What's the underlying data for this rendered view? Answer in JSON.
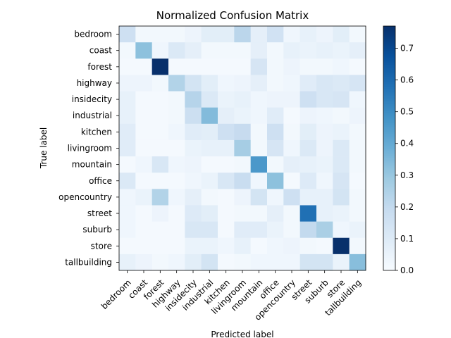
{
  "chart_data": {
    "type": "heatmap",
    "title": "Normalized Confusion Matrix",
    "xlabel": "Predicted label",
    "ylabel": "True label",
    "row_labels": [
      "bedroom",
      "coast",
      "forest",
      "highway",
      "insidecity",
      "industrial",
      "kitchen",
      "livingroom",
      "mountain",
      "office",
      "opencountry",
      "street",
      "suburb",
      "store",
      "tallbuilding"
    ],
    "col_labels": [
      "bedroom",
      "coast",
      "forest",
      "highway",
      "insidecity",
      "industrial",
      "kitchen",
      "livingroom",
      "mountain",
      "office",
      "opencountry",
      "street",
      "suburb",
      "store",
      "tallbuilding"
    ],
    "colormap": "Blues",
    "colorbar": {
      "min": 0.0,
      "max": 0.77,
      "ticks": [
        0.0,
        0.1,
        0.2,
        0.3,
        0.4,
        0.5,
        0.6,
        0.7
      ],
      "tick_labels": [
        "0.0",
        "0.1",
        "0.2",
        "0.3",
        "0.4",
        "0.5",
        "0.6",
        "0.7"
      ]
    },
    "values": [
      [
        0.16,
        0.02,
        0.02,
        0.02,
        0.04,
        0.08,
        0.08,
        0.22,
        0.07,
        0.15,
        0.03,
        0.06,
        0.04,
        0.08,
        0.02
      ],
      [
        0.02,
        0.32,
        0.03,
        0.11,
        0.07,
        0.02,
        0.02,
        0.02,
        0.07,
        0.02,
        0.06,
        0.05,
        0.06,
        0.05,
        0.07
      ],
      [
        0.01,
        0.01,
        0.77,
        0.01,
        0.01,
        0.01,
        0.01,
        0.01,
        0.13,
        0.02,
        0.04,
        0.02,
        0.02,
        0.03,
        0.01
      ],
      [
        0.04,
        0.04,
        0.02,
        0.24,
        0.14,
        0.08,
        0.03,
        0.04,
        0.07,
        0.02,
        0.03,
        0.09,
        0.12,
        0.11,
        0.13
      ],
      [
        0.06,
        0.01,
        0.01,
        0.02,
        0.23,
        0.11,
        0.05,
        0.06,
        0.03,
        0.04,
        0.04,
        0.16,
        0.12,
        0.13,
        0.03
      ],
      [
        0.06,
        0.01,
        0.01,
        0.02,
        0.17,
        0.34,
        0.07,
        0.05,
        0.03,
        0.09,
        0.01,
        0.04,
        0.03,
        0.02,
        0.04
      ],
      [
        0.09,
        0.01,
        0.01,
        0.03,
        0.09,
        0.08,
        0.16,
        0.19,
        0.02,
        0.16,
        0.02,
        0.08,
        0.04,
        0.05,
        0.02
      ],
      [
        0.09,
        0.01,
        0.01,
        0.01,
        0.05,
        0.06,
        0.06,
        0.27,
        0.02,
        0.13,
        0.03,
        0.11,
        0.04,
        0.11,
        0.02
      ],
      [
        0.01,
        0.03,
        0.12,
        0.03,
        0.04,
        0.01,
        0.01,
        0.02,
        0.46,
        0.02,
        0.07,
        0.06,
        0.05,
        0.11,
        0.02
      ],
      [
        0.11,
        0.01,
        0.01,
        0.01,
        0.03,
        0.05,
        0.12,
        0.18,
        0.03,
        0.32,
        0.01,
        0.1,
        0.03,
        0.13,
        0.01
      ],
      [
        0.03,
        0.05,
        0.24,
        0.03,
        0.07,
        0.02,
        0.01,
        0.04,
        0.14,
        0.03,
        0.16,
        0.06,
        0.06,
        0.14,
        0.02
      ],
      [
        0.03,
        0.01,
        0.04,
        0.01,
        0.1,
        0.08,
        0.01,
        0.02,
        0.02,
        0.07,
        0.02,
        0.58,
        0.06,
        0.05,
        0.02
      ],
      [
        0.03,
        0.01,
        0.01,
        0.01,
        0.12,
        0.12,
        0.01,
        0.09,
        0.09,
        0.05,
        0.02,
        0.2,
        0.26,
        0.03,
        0.05
      ],
      [
        0.01,
        0.01,
        0.01,
        0.01,
        0.05,
        0.05,
        0.03,
        0.06,
        0.01,
        0.03,
        0.04,
        0.02,
        0.01,
        0.77,
        0.02
      ],
      [
        0.06,
        0.04,
        0.02,
        0.03,
        0.08,
        0.14,
        0.01,
        0.02,
        0.03,
        0.03,
        0.03,
        0.14,
        0.14,
        0.05,
        0.33
      ]
    ]
  }
}
